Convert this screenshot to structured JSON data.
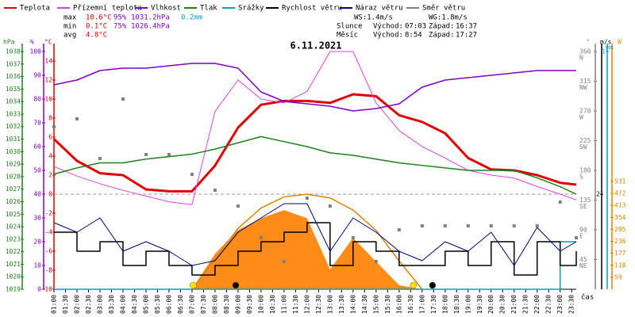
{
  "header": {
    "title": "6.11.2021",
    "legend": [
      {
        "name": "Teplota",
        "color": "#e00000"
      },
      {
        "name": "Přízemní teplota",
        "color": "#e040e0"
      },
      {
        "name": "Vlhkost",
        "color": "#8000c0"
      },
      {
        "name": "Tlak",
        "color": "#208020"
      },
      {
        "name": "Srážky",
        "color": "#00a0c0"
      },
      {
        "name": "Rychlost větru",
        "color": "#000000"
      },
      {
        "name": "Náraz větru",
        "color": "#000080"
      },
      {
        "name": "Směr větru",
        "color": "#808080"
      }
    ],
    "stats": [
      [
        "max",
        "10.6°C",
        "95%",
        "1031.2hPa",
        "0.2mm"
      ],
      [
        "min",
        "0.1°C",
        "75%",
        "1026.4hPa"
      ],
      [
        "avg",
        "4.8°C"
      ]
    ],
    "wind": [
      "WS:1.4m/s",
      "WG:1.8m/s"
    ],
    "sun": {
      "label": "Slunce",
      "rise_label": "Východ:",
      "rise": "07:03",
      "set_label": "Západ:",
      "set": "16:37"
    },
    "moon": {
      "label": "Měsíc",
      "rise_label": "Východ:",
      "rise": "8:54",
      "set_label": "Západ:",
      "set": "17:27"
    },
    "x_label": "čas"
  },
  "chart_data": {
    "type": "line",
    "x": [
      1,
      2,
      3,
      4,
      5,
      6,
      7,
      8,
      9,
      10,
      11,
      12,
      13,
      14,
      15,
      16,
      17,
      18,
      19,
      20,
      21,
      22,
      23,
      23.7
    ],
    "xlim": [
      1,
      23.7
    ],
    "xticks": [
      {
        "value": 1,
        "label": "01:00"
      },
      {
        "value": 1.5,
        "label": "01:30"
      },
      {
        "value": 2,
        "label": "02:00"
      },
      {
        "value": 2.5,
        "label": "02:30"
      },
      {
        "value": 3,
        "label": "03:00"
      },
      {
        "value": 3.5,
        "label": "03:30"
      },
      {
        "value": 4,
        "label": "04:00"
      },
      {
        "value": 4.5,
        "label": "04:30"
      },
      {
        "value": 5,
        "label": "05:00"
      },
      {
        "value": 5.5,
        "label": "05:30"
      },
      {
        "value": 6,
        "label": "06:00"
      },
      {
        "value": 6.5,
        "label": "06:30"
      },
      {
        "value": 7,
        "label": "07:00"
      },
      {
        "value": 7.5,
        "label": "07:30"
      },
      {
        "value": 8,
        "label": "08:00"
      },
      {
        "value": 8.5,
        "label": "08:30"
      },
      {
        "value": 9,
        "label": "09:00"
      },
      {
        "value": 9.5,
        "label": "09:30"
      },
      {
        "value": 10,
        "label": "10:00"
      },
      {
        "value": 10.5,
        "label": "10:30"
      },
      {
        "value": 11,
        "label": "11:00"
      },
      {
        "value": 11.5,
        "label": "11:30"
      },
      {
        "value": 12,
        "label": "12:00"
      },
      {
        "value": 12.5,
        "label": "12:30"
      },
      {
        "value": 13,
        "label": "13:00"
      },
      {
        "value": 13.5,
        "label": "13:30"
      },
      {
        "value": 14,
        "label": "14:00"
      },
      {
        "value": 14.5,
        "label": "14:30"
      },
      {
        "value": 15,
        "label": "15:00"
      },
      {
        "value": 15.5,
        "label": "15:30"
      },
      {
        "value": 16,
        "label": "16:00"
      },
      {
        "value": 16.5,
        "label": "16:30"
      },
      {
        "value": 17,
        "label": "17:00"
      },
      {
        "value": 17.5,
        "label": "17:30"
      },
      {
        "value": 18,
        "label": "18:00"
      },
      {
        "value": 18.5,
        "label": "18:30"
      },
      {
        "value": 19,
        "label": "19:00"
      },
      {
        "value": 19.5,
        "label": "19:30"
      },
      {
        "value": 20,
        "label": "20:00"
      },
      {
        "value": 20.5,
        "label": "20:30"
      },
      {
        "value": 21,
        "label": "21:00"
      },
      {
        "value": 21.5,
        "label": "21:30"
      },
      {
        "value": 22,
        "label": "22:00"
      },
      {
        "value": 22.5,
        "label": "22:30"
      },
      {
        "value": 23,
        "label": "23:00"
      },
      {
        "value": 23.5,
        "label": "23:30"
      }
    ],
    "axes": {
      "p": {
        "unit": "hPa",
        "color": "#208020",
        "lim": [
          1019,
          1038
        ],
        "ticks": [
          1019,
          1020,
          1021,
          1022,
          1023,
          1024,
          1025,
          1026,
          1027,
          1028,
          1029,
          1030,
          1031,
          1032,
          1033,
          1034,
          1035,
          1036,
          1037,
          1038
        ]
      },
      "rh": {
        "unit": "%",
        "color": "#8000c0",
        "lim": [
          0,
          100
        ],
        "ticks": [
          0,
          10,
          20,
          30,
          40,
          50,
          60,
          70,
          80,
          90,
          100
        ]
      },
      "t": {
        "unit": "°C",
        "color": "#e00000",
        "lim": [
          -10,
          15
        ],
        "ticks": [
          -10,
          -8,
          -6,
          -4,
          -2,
          0,
          2,
          4,
          6,
          8,
          10,
          12,
          14
        ]
      },
      "dir": {
        "unit": "°",
        "color": "#808080",
        "lim": [
          0,
          360
        ],
        "ticks": [
          45,
          90,
          135,
          180,
          225,
          270,
          315,
          360
        ],
        "tick_names": [
          "NE",
          "E",
          "SE",
          "S",
          "SW",
          "W",
          "NW",
          "N"
        ]
      },
      "wind": {
        "unit": "m/s",
        "color": "#000000",
        "lim": [
          0,
          5
        ],
        "ticks": [
          2
        ]
      },
      "mm": {
        "unit": "mm",
        "color": "#00a0c0",
        "lim": [
          0,
          1
        ],
        "ticks": [
          1
        ]
      },
      "W": {
        "unit": "W",
        "color": "#e08000",
        "lim": [
          0,
          1171
        ],
        "ticks": [
          59,
          118,
          177,
          236,
          295,
          354,
          413,
          472,
          531
        ]
      }
    },
    "radiation": {
      "color": "#ff8000",
      "axis": "W",
      "values": [
        0,
        0,
        0,
        0,
        0,
        0,
        0,
        175,
        292,
        350,
        390,
        350,
        98,
        253,
        136,
        20,
        0,
        0,
        0,
        0,
        0,
        0,
        0,
        0
      ]
    },
    "radiation_max": {
      "color": "#e08000",
      "axis": "W",
      "values": [
        null,
        null,
        null,
        null,
        null,
        null,
        0,
        150,
        300,
        400,
        455,
        468,
        450,
        390,
        290,
        140,
        0,
        null,
        null,
        null,
        null,
        null,
        null,
        null
      ]
    },
    "series": [
      {
        "name": "Teplota",
        "color": "#e00000",
        "axis": "t",
        "style": "line",
        "width": 3,
        "values": [
          5.8,
          3.5,
          2.2,
          2.0,
          0.5,
          0.3,
          0.3,
          3.0,
          7.0,
          9.4,
          9.8,
          9.8,
          9.6,
          10.5,
          10.3,
          8.3,
          7.6,
          6.4,
          3.8,
          2.6,
          2.5,
          2.0,
          1.2,
          1.0
        ]
      },
      {
        "name": "Přízemní teplota",
        "color": "#e040e0",
        "axis": "t",
        "style": "line",
        "width": 1,
        "values": [
          2.9,
          1.9,
          1.1,
          0.4,
          -0.2,
          -0.8,
          -1.1,
          8.7,
          12,
          10,
          9.6,
          10.8,
          15,
          15,
          9.6,
          6.7,
          5,
          3.8,
          2.5,
          2,
          1.7,
          0.8,
          0,
          -0.6
        ]
      },
      {
        "name": "Vlhkost",
        "color": "#8000c0",
        "axis": "rh",
        "style": "line",
        "width": 1.5,
        "values": [
          86,
          88,
          92,
          93,
          93,
          94,
          95,
          95,
          93,
          83,
          79,
          78,
          77,
          75,
          76,
          78,
          85,
          88,
          89,
          90,
          91,
          92,
          92,
          92
        ]
      },
      {
        "name": "Tlak",
        "color": "#208020",
        "axis": "p",
        "style": "line",
        "width": 1.5,
        "values": [
          1028.2,
          1028.7,
          1029.1,
          1029.1,
          1029.4,
          1029.6,
          1029.8,
          1030.2,
          1030.7,
          1031.2,
          1030.8,
          1030.4,
          1029.9,
          1029.7,
          1029.4,
          1029.1,
          1028.9,
          1028.7,
          1028.5,
          1028.5,
          1028.5,
          1027.9,
          1027.2,
          1026.6
        ]
      },
      {
        "name": "Srážky",
        "color": "#00a0c0",
        "axis": "mm",
        "style": "step",
        "width": 1.5,
        "values": [
          0,
          0,
          0,
          0,
          0,
          0,
          0,
          0,
          0,
          0,
          0,
          0,
          0,
          0,
          0,
          0,
          0,
          0,
          0,
          0,
          0,
          0,
          0.2,
          0.2
        ]
      },
      {
        "name": "Rychlost větru",
        "color": "#000000",
        "axis": "wind",
        "style": "step",
        "width": 1.5,
        "values": [
          1.2,
          0.8,
          1.0,
          0.5,
          0.8,
          0.5,
          0.3,
          0.5,
          0.8,
          1.0,
          1.2,
          1.4,
          0.5,
          1.0,
          0.8,
          0.5,
          0.5,
          0.8,
          0.5,
          1.0,
          0.3,
          1.0,
          0.5,
          0.8
        ]
      },
      {
        "name": "Náraz větru",
        "color": "#000080",
        "axis": "wind",
        "style": "line",
        "width": 1,
        "values": [
          1.4,
          1.2,
          1.5,
          0.8,
          1.0,
          0.8,
          0.5,
          0.6,
          1.2,
          1.5,
          1.8,
          1.8,
          0.8,
          1.5,
          1.2,
          0.8,
          0.6,
          1.0,
          0.8,
          1.2,
          0.5,
          1.3,
          0.8,
          1.0
        ]
      },
      {
        "name": "Směr větru",
        "color": "#808080",
        "axis": "dir",
        "style": "points",
        "values": [
          246,
          258,
          198,
          288,
          204,
          204,
          174,
          150,
          126,
          78,
          42,
          138,
          126,
          78,
          42,
          90,
          96,
          96,
          96,
          96,
          96,
          96,
          132,
          78
        ]
      }
    ]
  }
}
